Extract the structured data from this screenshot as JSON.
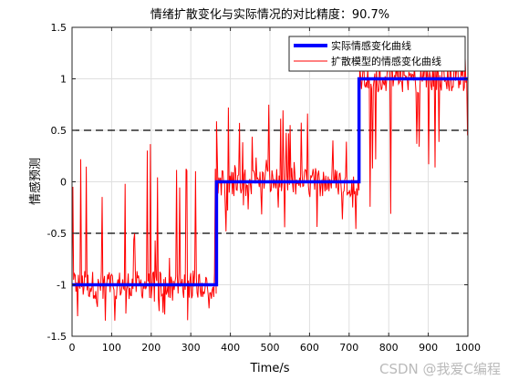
{
  "chart_data": {
    "type": "line",
    "title": "情绪扩散变化与实际情况的对比精度：90.7%",
    "xlabel": "Time/s",
    "ylabel": "情感预测",
    "xlim": [
      0,
      1000
    ],
    "ylim": [
      -1.5,
      1.5
    ],
    "xticks": [
      "0",
      "100",
      "200",
      "300",
      "400",
      "500",
      "600",
      "700",
      "800",
      "900",
      "1000"
    ],
    "yticks": [
      "-1.5",
      "-1",
      "-0.5",
      "0",
      "0.5",
      "1",
      "1.5"
    ],
    "grid": true,
    "legend_position": "top-right",
    "reference_lines": [
      {
        "y": 0.5,
        "style": "dashed",
        "color": "#000000"
      },
      {
        "y": -0.5,
        "style": "dashed",
        "color": "#000000"
      }
    ],
    "series": [
      {
        "name": "实际情感变化曲线",
        "color": "#0000ff",
        "style": "thick-step",
        "steps": [
          {
            "x_start": 0,
            "x_end": 365,
            "y": -1
          },
          {
            "x_start": 365,
            "x_end": 725,
            "y": 0
          },
          {
            "x_start": 725,
            "x_end": 1000,
            "y": 1
          }
        ]
      },
      {
        "name": "扩散模型的情感变化曲线",
        "color": "#ff0000",
        "style": "noisy-line",
        "segments": [
          {
            "x_start": 0,
            "x_end": 365,
            "level": -1,
            "min": -1.35,
            "max": 0.4
          },
          {
            "x_start": 365,
            "x_end": 725,
            "level": 0,
            "min": -0.5,
            "max": 0.75
          },
          {
            "x_start": 725,
            "x_end": 1000,
            "level": 1,
            "min": -0.35,
            "max": 1.35
          }
        ]
      }
    ]
  },
  "watermark": "CSDN @我爱C编程"
}
